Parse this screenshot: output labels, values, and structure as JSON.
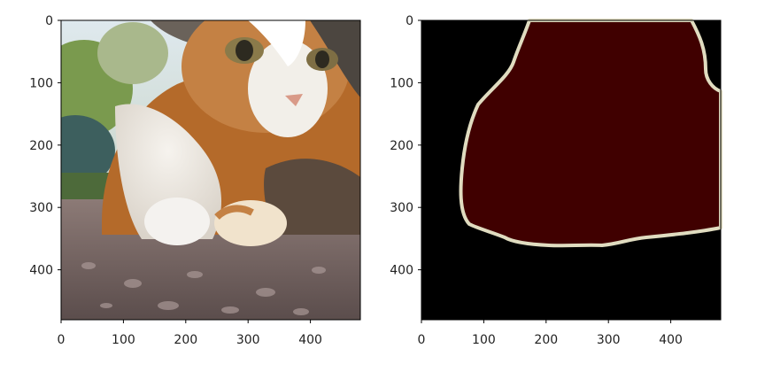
{
  "figure": {
    "panels": [
      {
        "id": "left",
        "content": "photo",
        "x_ticks": [
          "0",
          "100",
          "200",
          "300",
          "400"
        ],
        "y_ticks": [
          "0",
          "100",
          "200",
          "300",
          "400"
        ]
      },
      {
        "id": "right",
        "content": "segmentation-mask",
        "x_ticks": [
          "0",
          "100",
          "200",
          "300",
          "400"
        ],
        "y_ticks": [
          "0",
          "100",
          "200",
          "300",
          "400"
        ]
      }
    ]
  },
  "colors": {
    "mask_background": "#000000",
    "mask_fill": "#400000",
    "mask_outline": "#e0dcc0"
  }
}
